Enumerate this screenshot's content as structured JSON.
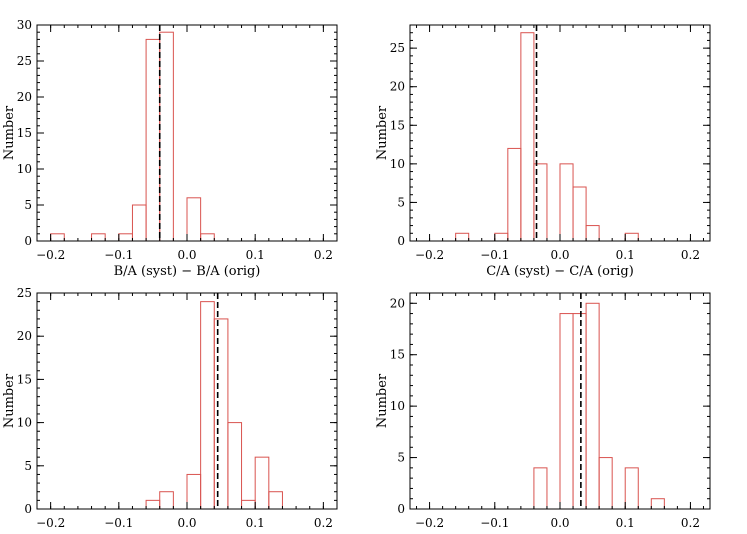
{
  "chart_data": [
    {
      "type": "bar",
      "xlabel": "B/A (syst) − B/A (orig)",
      "ylabel": "Number",
      "xlim": [
        -0.22,
        0.22
      ],
      "ylim": [
        0,
        30
      ],
      "xticks": [
        -0.2,
        -0.1,
        0.0,
        0.1,
        0.2
      ],
      "xtick_labels": [
        "−0.2",
        "−0.1",
        "0.0",
        "0.1",
        "0.2"
      ],
      "yticks": [
        0,
        5,
        10,
        15,
        20,
        25,
        30
      ],
      "ytick_labels": [
        "0",
        "5",
        "10",
        "15",
        "20",
        "25",
        "30"
      ],
      "bin_width": 0.02,
      "bins": [
        {
          "x0": -0.2,
          "count": 1
        },
        {
          "x0": -0.14,
          "count": 1
        },
        {
          "x0": -0.1,
          "count": 1
        },
        {
          "x0": -0.08,
          "count": 5
        },
        {
          "x0": -0.06,
          "count": 28
        },
        {
          "x0": -0.04,
          "count": 29
        },
        {
          "x0": 0.0,
          "count": 6
        },
        {
          "x0": 0.02,
          "count": 1
        }
      ],
      "mean_line_x": -0.04,
      "bar_color": "#d9534f"
    },
    {
      "type": "bar",
      "xlabel": "C/A (syst) − C/A (orig)",
      "ylabel": "Number",
      "xlim": [
        -0.23,
        0.23
      ],
      "ylim": [
        0,
        28
      ],
      "xticks": [
        -0.2,
        -0.1,
        0.0,
        0.1,
        0.2
      ],
      "xtick_labels": [
        "−0.2",
        "−0.1",
        "0.0",
        "0.1",
        "0.2"
      ],
      "yticks": [
        0,
        5,
        10,
        15,
        20,
        25
      ],
      "ytick_labels": [
        "0",
        "5",
        "10",
        "15",
        "20",
        "25"
      ],
      "bin_width": 0.02,
      "bins": [
        {
          "x0": -0.16,
          "count": 1
        },
        {
          "x0": -0.1,
          "count": 1
        },
        {
          "x0": -0.08,
          "count": 12
        },
        {
          "x0": -0.06,
          "count": 27
        },
        {
          "x0": -0.04,
          "count": 10
        },
        {
          "x0": 0.0,
          "count": 10
        },
        {
          "x0": 0.02,
          "count": 7
        },
        {
          "x0": 0.04,
          "count": 2
        },
        {
          "x0": 0.1,
          "count": 1
        }
      ],
      "mean_line_x": -0.036,
      "bar_color": "#d9534f"
    },
    {
      "type": "bar",
      "xlabel": "",
      "ylabel": "Number",
      "xlim": [
        -0.22,
        0.22
      ],
      "ylim": [
        0,
        25
      ],
      "xticks": [
        -0.2,
        -0.1,
        0.0,
        0.1,
        0.2
      ],
      "xtick_labels": [
        "−0.2",
        "−0.1",
        "0.0",
        "0.1",
        "0.2"
      ],
      "yticks": [
        0,
        5,
        10,
        15,
        20,
        25
      ],
      "ytick_labels": [
        "0",
        "5",
        "10",
        "15",
        "20",
        "25"
      ],
      "bin_width": 0.02,
      "bins": [
        {
          "x0": -0.06,
          "count": 1
        },
        {
          "x0": -0.04,
          "count": 2
        },
        {
          "x0": 0.0,
          "count": 4
        },
        {
          "x0": 0.02,
          "count": 24
        },
        {
          "x0": 0.04,
          "count": 22
        },
        {
          "x0": 0.06,
          "count": 10
        },
        {
          "x0": 0.08,
          "count": 1
        },
        {
          "x0": 0.1,
          "count": 6
        },
        {
          "x0": 0.12,
          "count": 2
        }
      ],
      "mean_line_x": 0.045,
      "bar_color": "#d9534f"
    },
    {
      "type": "bar",
      "xlabel": "",
      "ylabel": "Number",
      "xlim": [
        -0.23,
        0.23
      ],
      "ylim": [
        0,
        21
      ],
      "xticks": [
        -0.2,
        -0.1,
        0.0,
        0.1,
        0.2
      ],
      "xtick_labels": [
        "−0.2",
        "−0.1",
        "0.0",
        "0.1",
        "0.2"
      ],
      "yticks": [
        0,
        5,
        10,
        15,
        20
      ],
      "ytick_labels": [
        "0",
        "5",
        "10",
        "15",
        "20"
      ],
      "bin_width": 0.02,
      "bins": [
        {
          "x0": -0.04,
          "count": 4
        },
        {
          "x0": 0.0,
          "count": 19
        },
        {
          "x0": 0.02,
          "count": 19
        },
        {
          "x0": 0.04,
          "count": 20
        },
        {
          "x0": 0.06,
          "count": 5
        },
        {
          "x0": 0.1,
          "count": 4
        },
        {
          "x0": 0.14,
          "count": 1
        }
      ],
      "mean_line_x": 0.032,
      "bar_color": "#d9534f"
    }
  ]
}
